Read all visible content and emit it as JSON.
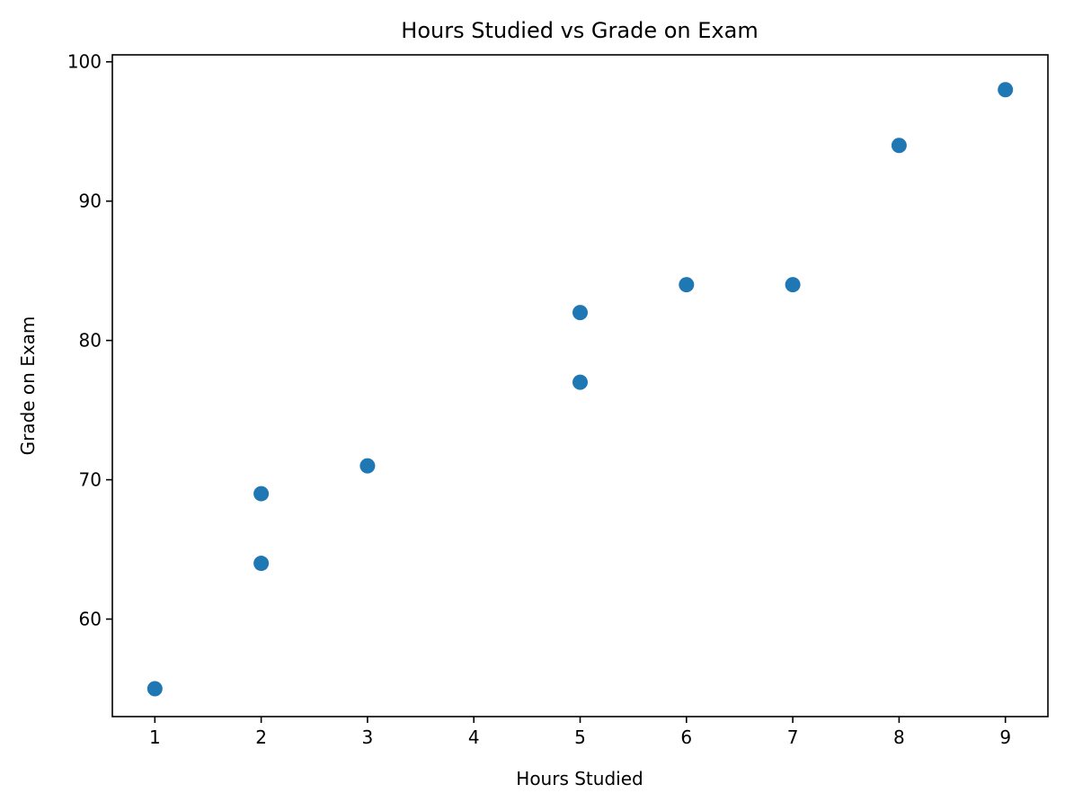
{
  "chart_data": {
    "type": "scatter",
    "title": "Hours Studied vs Grade on Exam",
    "xlabel": "Hours Studied",
    "ylabel": "Grade on Exam",
    "xlim": [
      0.6,
      9.4
    ],
    "ylim": [
      53,
      100.5
    ],
    "x_ticks": [
      1,
      2,
      3,
      4,
      5,
      6,
      7,
      8,
      9
    ],
    "y_ticks": [
      60,
      70,
      80,
      90,
      100
    ],
    "grid": false,
    "legend": "none",
    "marker_color": "#1f77b4",
    "points": [
      {
        "x": 1,
        "y": 55
      },
      {
        "x": 2,
        "y": 64
      },
      {
        "x": 2,
        "y": 69
      },
      {
        "x": 3,
        "y": 71
      },
      {
        "x": 5,
        "y": 77
      },
      {
        "x": 5,
        "y": 82
      },
      {
        "x": 6,
        "y": 84
      },
      {
        "x": 7,
        "y": 84
      },
      {
        "x": 8,
        "y": 94
      },
      {
        "x": 9,
        "y": 98
      }
    ]
  }
}
